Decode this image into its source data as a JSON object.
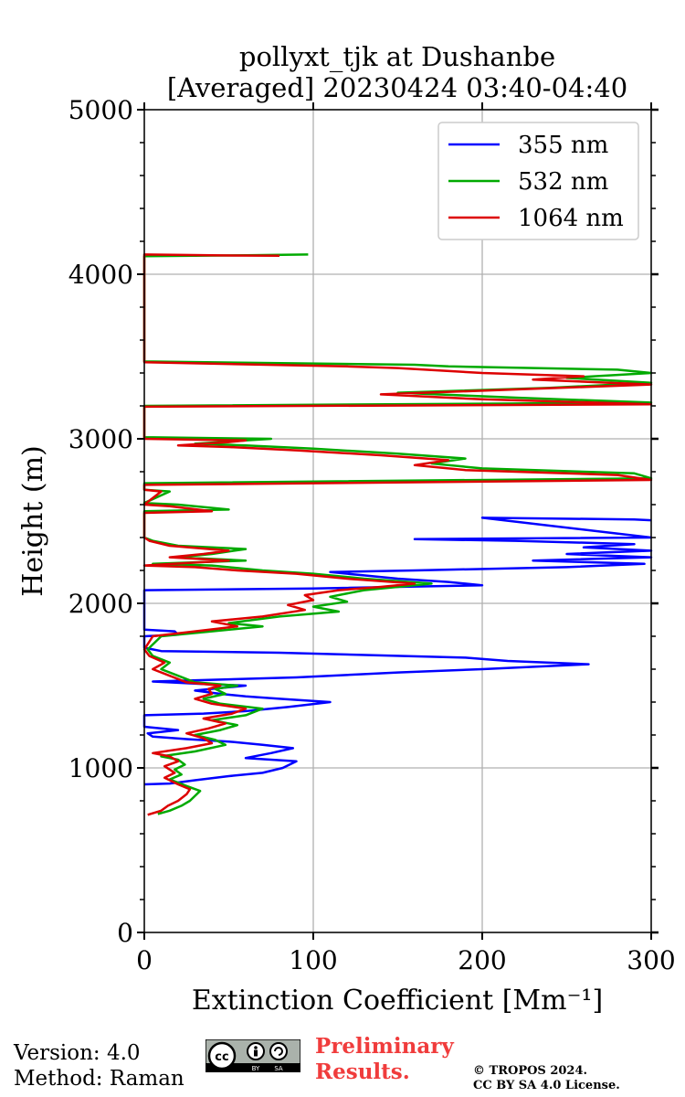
{
  "chart_data": {
    "type": "line",
    "title": [
      "pollyxt_tjk at Dushanbe",
      "[Averaged] 20230424 03:40-04:40"
    ],
    "xlabel": "Extinction Coefficient [Mm⁻¹]",
    "ylabel": "Height (m)",
    "xlim": [
      0,
      300
    ],
    "ylim": [
      0,
      5000
    ],
    "xticks": [
      0,
      100,
      200,
      300
    ],
    "yticks": [
      0,
      1000,
      2000,
      3000,
      4000,
      5000
    ],
    "grid": true,
    "legend_position": "top-right",
    "series": [
      {
        "name": "355 nm",
        "color": "#0000ff",
        "points": [
          [
            0,
            900
          ],
          [
            15,
            905
          ],
          [
            30,
            925
          ],
          [
            50,
            950
          ],
          [
            70,
            970
          ],
          [
            82,
            1000
          ],
          [
            90,
            1040
          ],
          [
            60,
            1060
          ],
          [
            75,
            1090
          ],
          [
            88,
            1120
          ],
          [
            70,
            1140
          ],
          [
            50,
            1160
          ],
          [
            25,
            1175
          ],
          [
            5,
            1190
          ],
          [
            2,
            1210
          ],
          [
            20,
            1230
          ],
          [
            0,
            1250
          ],
          [
            0,
            1320
          ],
          [
            35,
            1330
          ],
          [
            60,
            1345
          ],
          [
            85,
            1370
          ],
          [
            110,
            1400
          ],
          [
            80,
            1420
          ],
          [
            60,
            1435
          ],
          [
            45,
            1450
          ],
          [
            30,
            1470
          ],
          [
            50,
            1490
          ],
          [
            60,
            1500
          ],
          [
            35,
            1510
          ],
          [
            5,
            1525
          ],
          [
            90,
            1550
          ],
          [
            150,
            1580
          ],
          [
            200,
            1600
          ],
          [
            263,
            1630
          ],
          [
            215,
            1650
          ],
          [
            190,
            1670
          ],
          [
            80,
            1700
          ],
          [
            10,
            1710
          ],
          [
            5,
            1720
          ],
          [
            0,
            1730
          ],
          [
            0,
            1800
          ],
          [
            20,
            1810
          ],
          [
            18,
            1830
          ],
          [
            0,
            1840
          ],
          [
            0,
            2080
          ],
          [
            100,
            2090
          ],
          [
            200,
            2110
          ],
          [
            180,
            2130
          ],
          [
            150,
            2150
          ],
          [
            130,
            2170
          ],
          [
            110,
            2190
          ],
          [
            160,
            2200
          ],
          [
            250,
            2220
          ],
          [
            296,
            2240
          ],
          [
            230,
            2260
          ],
          [
            300,
            2280
          ],
          [
            250,
            2300
          ],
          [
            300,
            2320
          ],
          [
            260,
            2340
          ],
          [
            290,
            2360
          ],
          [
            220,
            2380
          ],
          [
            160,
            2390
          ],
          [
            300,
            2400
          ],
          [
            200,
            2520
          ],
          [
            290,
            2510
          ],
          [
            300,
            2505
          ]
        ]
      },
      {
        "name": "532 nm",
        "color": "#00aa00",
        "points": [
          [
            8,
            720
          ],
          [
            15,
            740
          ],
          [
            22,
            770
          ],
          [
            27,
            800
          ],
          [
            30,
            830
          ],
          [
            33,
            860
          ],
          [
            25,
            890
          ],
          [
            15,
            930
          ],
          [
            22,
            960
          ],
          [
            18,
            990
          ],
          [
            24,
            1020
          ],
          [
            20,
            1050
          ],
          [
            10,
            1070
          ],
          [
            30,
            1100
          ],
          [
            48,
            1140
          ],
          [
            42,
            1170
          ],
          [
            30,
            1200
          ],
          [
            45,
            1230
          ],
          [
            55,
            1260
          ],
          [
            40,
            1290
          ],
          [
            60,
            1320
          ],
          [
            70,
            1360
          ],
          [
            45,
            1390
          ],
          [
            35,
            1420
          ],
          [
            48,
            1450
          ],
          [
            42,
            1480
          ],
          [
            55,
            1500
          ],
          [
            30,
            1520
          ],
          [
            20,
            1560
          ],
          [
            10,
            1600
          ],
          [
            15,
            1640
          ],
          [
            5,
            1680
          ],
          [
            2,
            1720
          ],
          [
            10,
            1800
          ],
          [
            40,
            1830
          ],
          [
            70,
            1860
          ],
          [
            50,
            1880
          ],
          [
            80,
            1920
          ],
          [
            115,
            1950
          ],
          [
            100,
            1980
          ],
          [
            120,
            2010
          ],
          [
            110,
            2040
          ],
          [
            130,
            2080
          ],
          [
            150,
            2100
          ],
          [
            170,
            2120
          ],
          [
            130,
            2150
          ],
          [
            100,
            2180
          ],
          [
            70,
            2200
          ],
          [
            40,
            2230
          ],
          [
            5,
            2240
          ],
          [
            60,
            2260
          ],
          [
            20,
            2280
          ],
          [
            40,
            2300
          ],
          [
            60,
            2330
          ],
          [
            20,
            2350
          ],
          [
            5,
            2380
          ],
          [
            0,
            2400
          ],
          [
            0,
            2560
          ],
          [
            50,
            2570
          ],
          [
            20,
            2600
          ],
          [
            0,
            2610
          ],
          [
            15,
            2680
          ],
          [
            0,
            2690
          ],
          [
            0,
            2730
          ],
          [
            300,
            2760
          ],
          [
            290,
            2790
          ],
          [
            200,
            2820
          ],
          [
            170,
            2850
          ],
          [
            190,
            2880
          ],
          [
            150,
            2910
          ],
          [
            100,
            2940
          ],
          [
            60,
            2960
          ],
          [
            30,
            2970
          ],
          [
            60,
            2990
          ],
          [
            75,
            3000
          ],
          [
            0,
            3010
          ],
          [
            0,
            3200
          ],
          [
            300,
            3220
          ],
          [
            220,
            3250
          ],
          [
            150,
            3280
          ],
          [
            240,
            3310
          ],
          [
            300,
            3340
          ],
          [
            250,
            3370
          ],
          [
            300,
            3400
          ],
          [
            280,
            3420
          ],
          [
            180,
            3440
          ],
          [
            160,
            3450
          ],
          [
            0,
            3470
          ],
          [
            0,
            4110
          ],
          [
            60,
            4115
          ],
          [
            97,
            4120
          ]
        ]
      },
      {
        "name": "1064 nm",
        "color": "#dd0000",
        "points": [
          [
            2,
            715
          ],
          [
            10,
            740
          ],
          [
            14,
            770
          ],
          [
            20,
            800
          ],
          [
            25,
            840
          ],
          [
            27,
            870
          ],
          [
            20,
            900
          ],
          [
            12,
            940
          ],
          [
            18,
            970
          ],
          [
            12,
            1010
          ],
          [
            20,
            1040
          ],
          [
            15,
            1070
          ],
          [
            5,
            1090
          ],
          [
            25,
            1120
          ],
          [
            40,
            1150
          ],
          [
            35,
            1180
          ],
          [
            25,
            1210
          ],
          [
            38,
            1240
          ],
          [
            48,
            1270
          ],
          [
            35,
            1300
          ],
          [
            52,
            1330
          ],
          [
            60,
            1360
          ],
          [
            40,
            1390
          ],
          [
            30,
            1420
          ],
          [
            40,
            1450
          ],
          [
            38,
            1480
          ],
          [
            45,
            1500
          ],
          [
            25,
            1520
          ],
          [
            15,
            1560
          ],
          [
            5,
            1600
          ],
          [
            12,
            1640
          ],
          [
            3,
            1680
          ],
          [
            0,
            1720
          ],
          [
            5,
            1800
          ],
          [
            30,
            1830
          ],
          [
            55,
            1860
          ],
          [
            40,
            1890
          ],
          [
            70,
            1920
          ],
          [
            95,
            1960
          ],
          [
            85,
            1990
          ],
          [
            100,
            2020
          ],
          [
            95,
            2050
          ],
          [
            115,
            2080
          ],
          [
            140,
            2100
          ],
          [
            160,
            2120
          ],
          [
            120,
            2150
          ],
          [
            90,
            2180
          ],
          [
            55,
            2200
          ],
          [
            30,
            2220
          ],
          [
            0,
            2230
          ],
          [
            50,
            2260
          ],
          [
            15,
            2280
          ],
          [
            35,
            2300
          ],
          [
            50,
            2320
          ],
          [
            15,
            2350
          ],
          [
            3,
            2380
          ],
          [
            0,
            2400
          ],
          [
            0,
            2550
          ],
          [
            40,
            2560
          ],
          [
            15,
            2590
          ],
          [
            0,
            2600
          ],
          [
            10,
            2680
          ],
          [
            0,
            2690
          ],
          [
            0,
            2720
          ],
          [
            300,
            2750
          ],
          [
            280,
            2780
          ],
          [
            190,
            2810
          ],
          [
            160,
            2840
          ],
          [
            180,
            2870
          ],
          [
            140,
            2900
          ],
          [
            90,
            2930
          ],
          [
            50,
            2950
          ],
          [
            20,
            2960
          ],
          [
            50,
            2980
          ],
          [
            60,
            2990
          ],
          [
            0,
            3000
          ],
          [
            0,
            3195
          ],
          [
            300,
            3210
          ],
          [
            200,
            3240
          ],
          [
            140,
            3270
          ],
          [
            220,
            3300
          ],
          [
            300,
            3330
          ],
          [
            230,
            3360
          ],
          [
            260,
            3380
          ],
          [
            200,
            3400
          ],
          [
            150,
            3430
          ],
          [
            120,
            3440
          ],
          [
            0,
            3465
          ],
          [
            0,
            4120
          ],
          [
            40,
            4115
          ],
          [
            80,
            4112
          ]
        ]
      }
    ]
  },
  "footer": {
    "version": "Version: 4.0",
    "method": "Method: Raman",
    "preliminary_line1": "Preliminary",
    "preliminary_line2": "Results.",
    "copyright_line1": "© TROPOS 2024.",
    "copyright_line2": "CC BY SA 4.0 License."
  },
  "license_badge": {
    "cc": "cc",
    "by": "BY",
    "sa": "SA"
  }
}
